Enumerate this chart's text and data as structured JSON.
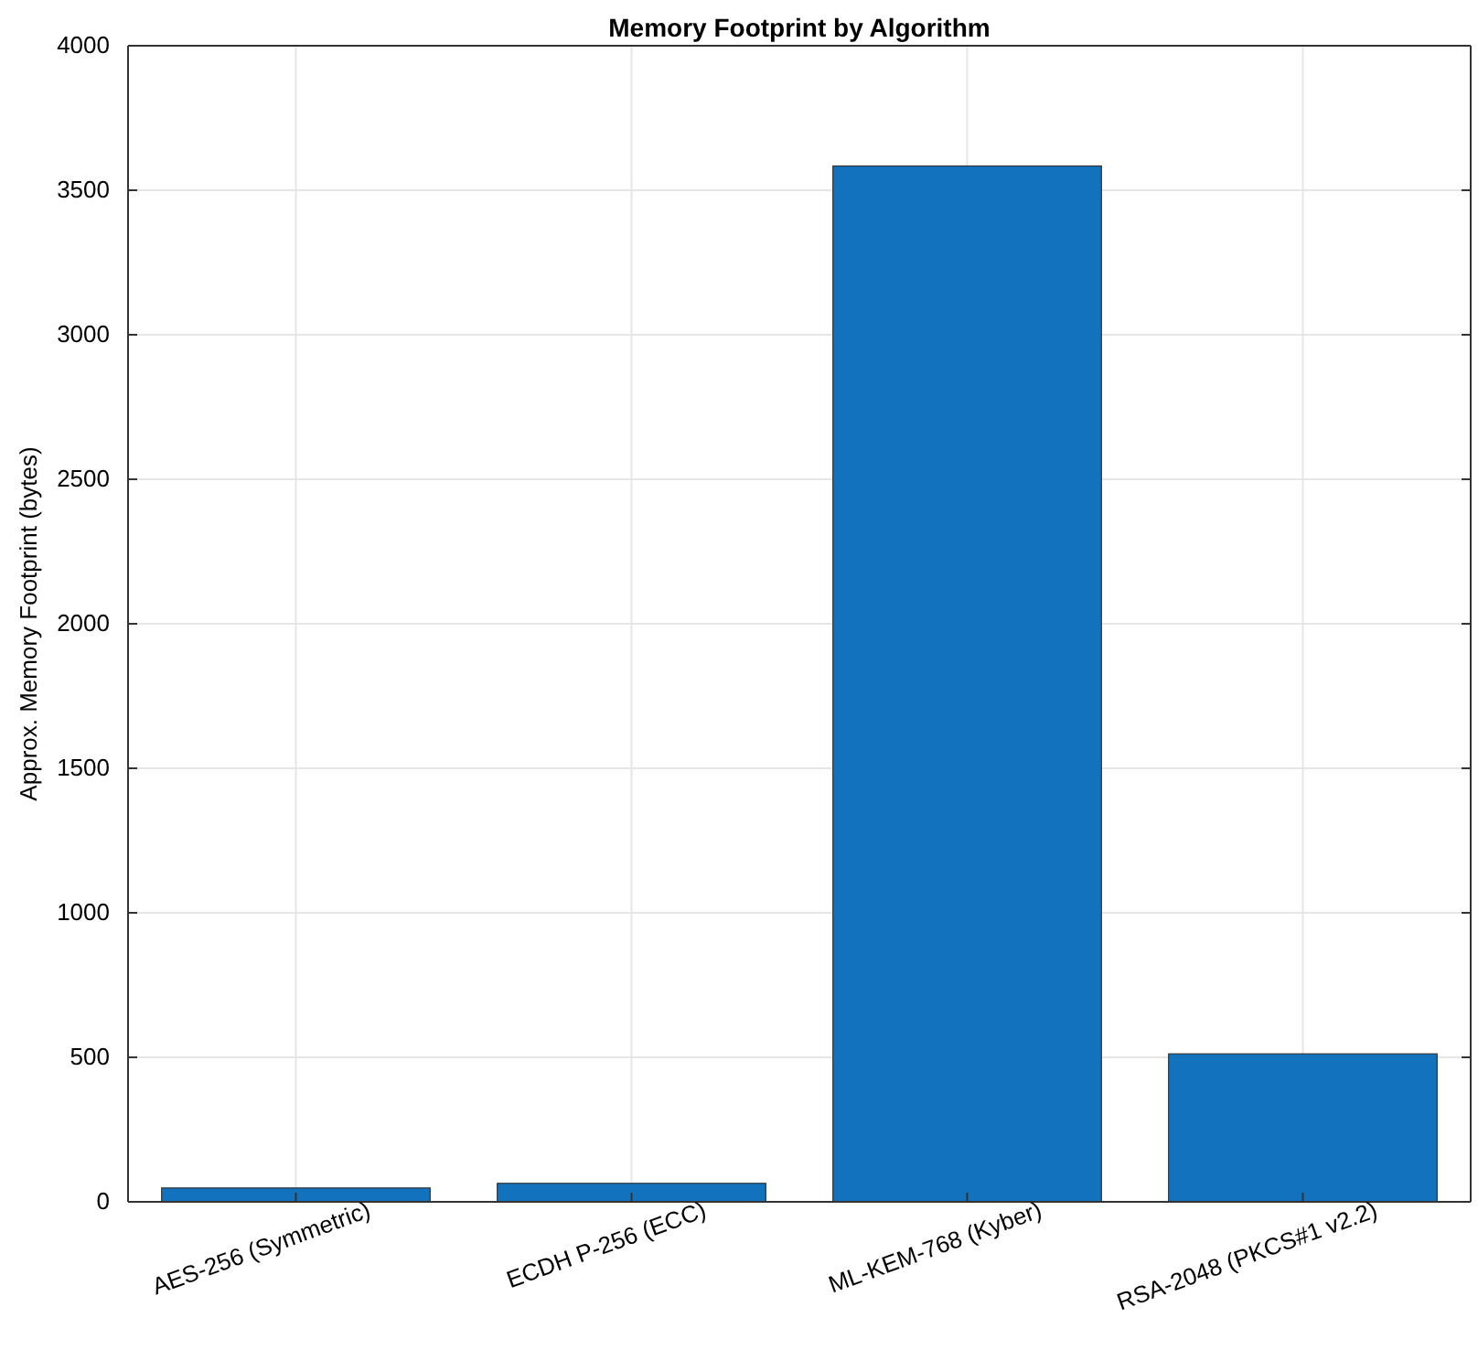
{
  "chart_data": {
    "type": "bar",
    "title": "Memory Footprint by Algorithm",
    "ylabel": "Approx. Memory Footprint (bytes)",
    "categories": [
      "AES-256 (Symmetric)",
      "ECDH P-256 (ECC)",
      "ML-KEM-768 (Kyber)",
      "RSA-2048 (PKCS#1 v2.2)"
    ],
    "values": [
      48,
      64,
      3584,
      512
    ],
    "color": "#1272be",
    "ylim": [
      0,
      4000
    ],
    "yticks": [
      0,
      500,
      1000,
      1500,
      2000,
      2500,
      3000,
      3500,
      4000
    ],
    "grid": true
  }
}
